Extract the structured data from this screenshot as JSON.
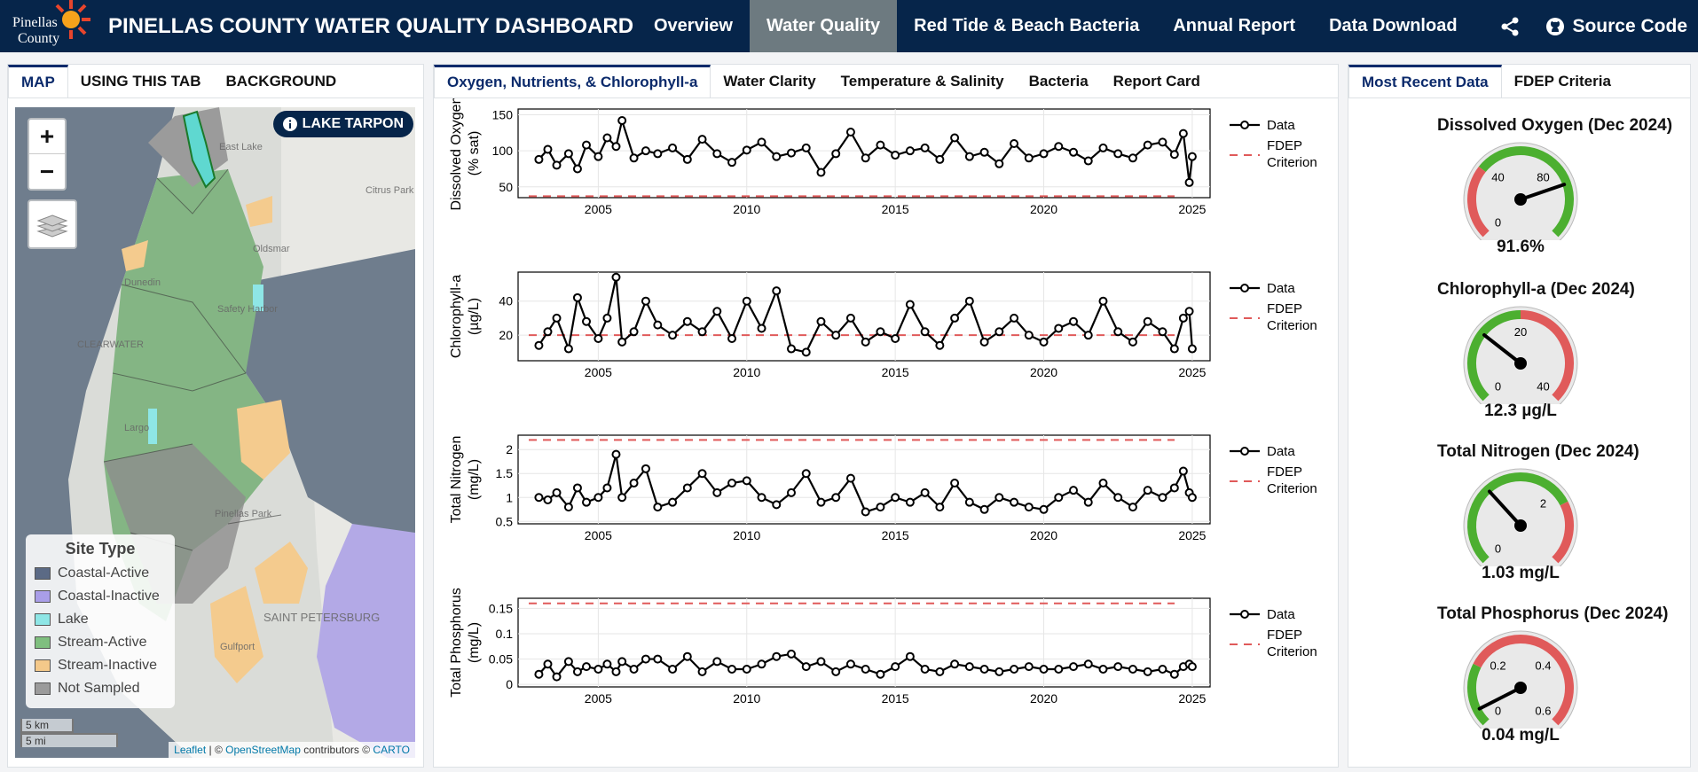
{
  "header": {
    "logo_text_line1": "Pinellas",
    "logo_text_line2": "County",
    "title": "PINELLAS COUNTY WATER QUALITY DASHBOARD",
    "nav": [
      {
        "label": "Overview",
        "active": false
      },
      {
        "label": "Water Quality",
        "active": true
      },
      {
        "label": "Red Tide & Beach Bacteria",
        "active": false
      },
      {
        "label": "Annual Report",
        "active": false
      },
      {
        "label": "Data Download",
        "active": false
      }
    ],
    "share_icon": "share-icon",
    "source_label": "Source Code",
    "source_icon": "github-icon"
  },
  "left_panel": {
    "tabs": [
      {
        "label": "MAP",
        "active": true
      },
      {
        "label": "USING THIS TAB",
        "active": false
      },
      {
        "label": "BACKGROUND",
        "active": false
      }
    ],
    "map": {
      "zoom_in": "+",
      "zoom_out": "−",
      "selected_site": "LAKE TARPON",
      "place_labels": [
        "East Lake",
        "Citrus Park",
        "Oldsmar",
        "Dunedin",
        "Safety Harbor",
        "CLEARWATER",
        "Largo",
        "Pinellas Park",
        "SAINT PETERSBURG",
        "Gulfport"
      ],
      "legend_title": "Site Type",
      "legend": [
        {
          "label": "Coastal-Active",
          "color": "#5b6a85"
        },
        {
          "label": "Coastal-Inactive",
          "color": "#a99ee8"
        },
        {
          "label": "Lake",
          "color": "#8ee6e6"
        },
        {
          "label": "Stream-Active",
          "color": "#7fbf7f"
        },
        {
          "label": "Stream-Inactive",
          "color": "#f4c98a"
        },
        {
          "label": "Not Sampled",
          "color": "#9b9b9b"
        }
      ],
      "scale_km": "5 km",
      "scale_mi": "5 mi",
      "attribution_leaflet": "Leaflet",
      "attribution_mid": " | © ",
      "attribution_osm": "OpenStreetMap",
      "attribution_contrib": " contributors © ",
      "attribution_carto": "CARTO"
    }
  },
  "center_panel": {
    "tabs": [
      {
        "label": "Oxygen, Nutrients, & Chlorophyll-a",
        "active": true
      },
      {
        "label": "Water Clarity",
        "active": false
      },
      {
        "label": "Temperature & Salinity",
        "active": false
      },
      {
        "label": "Bacteria",
        "active": false
      },
      {
        "label": "Report Card",
        "active": false
      }
    ]
  },
  "chart_data": [
    {
      "type": "line",
      "ylabel_line1": "Dissolved Oxygen",
      "ylabel_line2": "(% sat)",
      "x_range": [
        2002.3,
        2025.6
      ],
      "xticks": [
        2005,
        2010,
        2015,
        2020,
        2025
      ],
      "ylim": [
        35,
        158
      ],
      "yticks": [
        50,
        100,
        150
      ],
      "criterion": 37,
      "series": [
        {
          "name": "Data",
          "x": [
            2003.0,
            2003.3,
            2003.6,
            2004.0,
            2004.3,
            2004.6,
            2005.0,
            2005.3,
            2005.6,
            2005.8,
            2006.2,
            2006.6,
            2007.0,
            2007.5,
            2008.0,
            2008.5,
            2009.0,
            2009.5,
            2010.0,
            2010.5,
            2011.0,
            2011.5,
            2012.0,
            2012.5,
            2013.0,
            2013.5,
            2014.0,
            2014.5,
            2015.0,
            2015.5,
            2016.0,
            2016.5,
            2017.0,
            2017.5,
            2018.0,
            2018.5,
            2019.0,
            2019.5,
            2020.0,
            2020.5,
            2021.0,
            2021.5,
            2022.0,
            2022.5,
            2023.0,
            2023.5,
            2024.0,
            2024.4,
            2024.7,
            2024.9,
            2025.0
          ],
          "y": [
            88,
            102,
            80,
            96,
            75,
            108,
            92,
            118,
            106,
            142,
            90,
            100,
            96,
            104,
            88,
            116,
            96,
            84,
            101,
            112,
            92,
            97,
            104,
            70,
            96,
            126,
            90,
            108,
            94,
            100,
            104,
            88,
            118,
            92,
            98,
            82,
            110,
            90,
            96,
            106,
            98,
            86,
            104,
            96,
            90,
            108,
            112,
            95,
            124,
            56,
            92
          ]
        },
        {
          "name": "FDEP Criterion"
        }
      ]
    },
    {
      "type": "line",
      "ylabel_line1": "Chlorophyll-a",
      "ylabel_line2": "(µg/L)",
      "x_range": [
        2002.3,
        2025.6
      ],
      "xticks": [
        2005,
        2010,
        2015,
        2020,
        2025
      ],
      "ylim": [
        5,
        57
      ],
      "yticks": [
        20,
        40
      ],
      "criterion": 20,
      "series": [
        {
          "name": "Data",
          "x": [
            2003.0,
            2003.3,
            2003.6,
            2004.0,
            2004.3,
            2004.6,
            2005.0,
            2005.3,
            2005.6,
            2005.8,
            2006.2,
            2006.6,
            2007.0,
            2007.5,
            2008.0,
            2008.5,
            2009.0,
            2009.5,
            2010.0,
            2010.5,
            2011.0,
            2011.5,
            2012.0,
            2012.5,
            2013.0,
            2013.5,
            2014.0,
            2014.5,
            2015.0,
            2015.5,
            2016.0,
            2016.5,
            2017.0,
            2017.5,
            2018.0,
            2018.5,
            2019.0,
            2019.5,
            2020.0,
            2020.5,
            2021.0,
            2021.5,
            2022.0,
            2022.5,
            2023.0,
            2023.5,
            2024.0,
            2024.4,
            2024.7,
            2024.9,
            2025.0
          ],
          "y": [
            14,
            22,
            30,
            12,
            42,
            28,
            18,
            30,
            54,
            16,
            22,
            40,
            26,
            20,
            28,
            22,
            34,
            18,
            40,
            24,
            46,
            12,
            10,
            28,
            20,
            30,
            16,
            22,
            18,
            38,
            22,
            14,
            30,
            40,
            16,
            22,
            30,
            20,
            16,
            24,
            28,
            20,
            40,
            22,
            16,
            28,
            22,
            12,
            30,
            34,
            12
          ]
        },
        {
          "name": "FDEP Criterion"
        }
      ]
    },
    {
      "type": "line",
      "ylabel_line1": "Total Nitrogen",
      "ylabel_line2": "(mg/L)",
      "x_range": [
        2002.3,
        2025.6
      ],
      "xticks": [
        2005,
        2010,
        2015,
        2020,
        2025
      ],
      "ylim": [
        0.45,
        2.3
      ],
      "yticks": [
        0.5,
        1,
        1.5,
        2
      ],
      "ytick_labels": [
        "0.5",
        "1",
        "1.5",
        "2"
      ],
      "criterion": 2.2,
      "series": [
        {
          "name": "Data",
          "x": [
            2003.0,
            2003.3,
            2003.6,
            2004.0,
            2004.3,
            2004.6,
            2005.0,
            2005.3,
            2005.6,
            2005.8,
            2006.2,
            2006.6,
            2007.0,
            2007.5,
            2008.0,
            2008.5,
            2009.0,
            2009.5,
            2010.0,
            2010.5,
            2011.0,
            2011.5,
            2012.0,
            2012.5,
            2013.0,
            2013.5,
            2014.0,
            2014.5,
            2015.0,
            2015.5,
            2016.0,
            2016.5,
            2017.0,
            2017.5,
            2018.0,
            2018.5,
            2019.0,
            2019.5,
            2020.0,
            2020.5,
            2021.0,
            2021.5,
            2022.0,
            2022.5,
            2023.0,
            2023.5,
            2024.0,
            2024.4,
            2024.7,
            2024.9,
            2025.0
          ],
          "y": [
            1.0,
            0.95,
            1.1,
            0.8,
            1.2,
            0.9,
            1.0,
            1.2,
            1.9,
            1.0,
            1.3,
            1.6,
            0.8,
            0.9,
            1.2,
            1.5,
            1.1,
            1.3,
            1.35,
            1.0,
            0.85,
            1.1,
            1.5,
            0.9,
            1.0,
            1.4,
            0.7,
            0.8,
            1.0,
            0.9,
            1.1,
            0.8,
            1.3,
            0.9,
            0.75,
            1.0,
            0.9,
            0.8,
            0.75,
            1.0,
            1.15,
            0.9,
            1.3,
            1.0,
            0.8,
            1.15,
            1.0,
            1.2,
            1.55,
            1.1,
            1.0
          ]
        },
        {
          "name": "FDEP Criterion"
        }
      ]
    },
    {
      "type": "line",
      "ylabel_line1": "Total Phosphorus",
      "ylabel_line2": "(mg/L)",
      "x_range": [
        2002.3,
        2025.6
      ],
      "xticks": [
        2005,
        2010,
        2015,
        2020,
        2025
      ],
      "ylim": [
        -0.005,
        0.17
      ],
      "yticks": [
        0,
        0.05,
        0.1,
        0.15
      ],
      "ytick_labels": [
        "0",
        "0.05",
        "0.1",
        "0.15"
      ],
      "criterion": 0.16,
      "series": [
        {
          "name": "Data",
          "x": [
            2003.0,
            2003.3,
            2003.6,
            2004.0,
            2004.3,
            2004.6,
            2005.0,
            2005.3,
            2005.6,
            2005.8,
            2006.2,
            2006.6,
            2007.0,
            2007.5,
            2008.0,
            2008.5,
            2009.0,
            2009.5,
            2010.0,
            2010.5,
            2011.0,
            2011.5,
            2012.0,
            2012.5,
            2013.0,
            2013.5,
            2014.0,
            2014.5,
            2015.0,
            2015.5,
            2016.0,
            2016.5,
            2017.0,
            2017.5,
            2018.0,
            2018.5,
            2019.0,
            2019.5,
            2020.0,
            2020.5,
            2021.0,
            2021.5,
            2022.0,
            2022.5,
            2023.0,
            2023.5,
            2024.0,
            2024.4,
            2024.7,
            2024.9,
            2025.0
          ],
          "y": [
            0.02,
            0.04,
            0.015,
            0.045,
            0.025,
            0.035,
            0.03,
            0.04,
            0.025,
            0.045,
            0.03,
            0.05,
            0.05,
            0.03,
            0.055,
            0.025,
            0.045,
            0.03,
            0.03,
            0.04,
            0.055,
            0.06,
            0.035,
            0.045,
            0.025,
            0.04,
            0.03,
            0.02,
            0.035,
            0.055,
            0.03,
            0.025,
            0.04,
            0.035,
            0.03,
            0.025,
            0.03,
            0.035,
            0.03,
            0.03,
            0.035,
            0.04,
            0.03,
            0.035,
            0.03,
            0.025,
            0.03,
            0.02,
            0.035,
            0.04,
            0.035
          ]
        },
        {
          "name": "FDEP Criterion"
        }
      ]
    }
  ],
  "right_panel": {
    "tabs": [
      {
        "label": "Most Recent Data",
        "active": true
      },
      {
        "label": "FDEP Criteria",
        "active": false
      }
    ],
    "gauges": [
      {
        "title": "Dissolved Oxygen (Dec 2024)",
        "value_text": "91.6%",
        "value": 91.6,
        "range": [
          0,
          120
        ],
        "ticks": [
          0,
          40,
          80
        ],
        "good_above": 37
      },
      {
        "title": "Chlorophyll-a (Dec 2024)",
        "value_text": "12.3 µg/L",
        "value": 12.3,
        "range": [
          0,
          40
        ],
        "ticks": [
          0,
          20,
          40
        ],
        "good_below": 20
      },
      {
        "title": "Total Nitrogen (Dec 2024)",
        "value_text": "1.03 mg/L",
        "value": 1.03,
        "range": [
          0,
          3
        ],
        "ticks": [
          0,
          2
        ],
        "good_below": 2.2
      },
      {
        "title": "Total Phosphorus (Dec 2024)",
        "value_text": "0.04 mg/L",
        "value": 0.04,
        "range": [
          0,
          0.6
        ],
        "ticks": [
          0,
          0.2,
          0.4,
          0.6
        ],
        "good_below": 0.16
      }
    ],
    "colors": {
      "good": "#4caf30",
      "bad": "#e05a5a"
    }
  }
}
